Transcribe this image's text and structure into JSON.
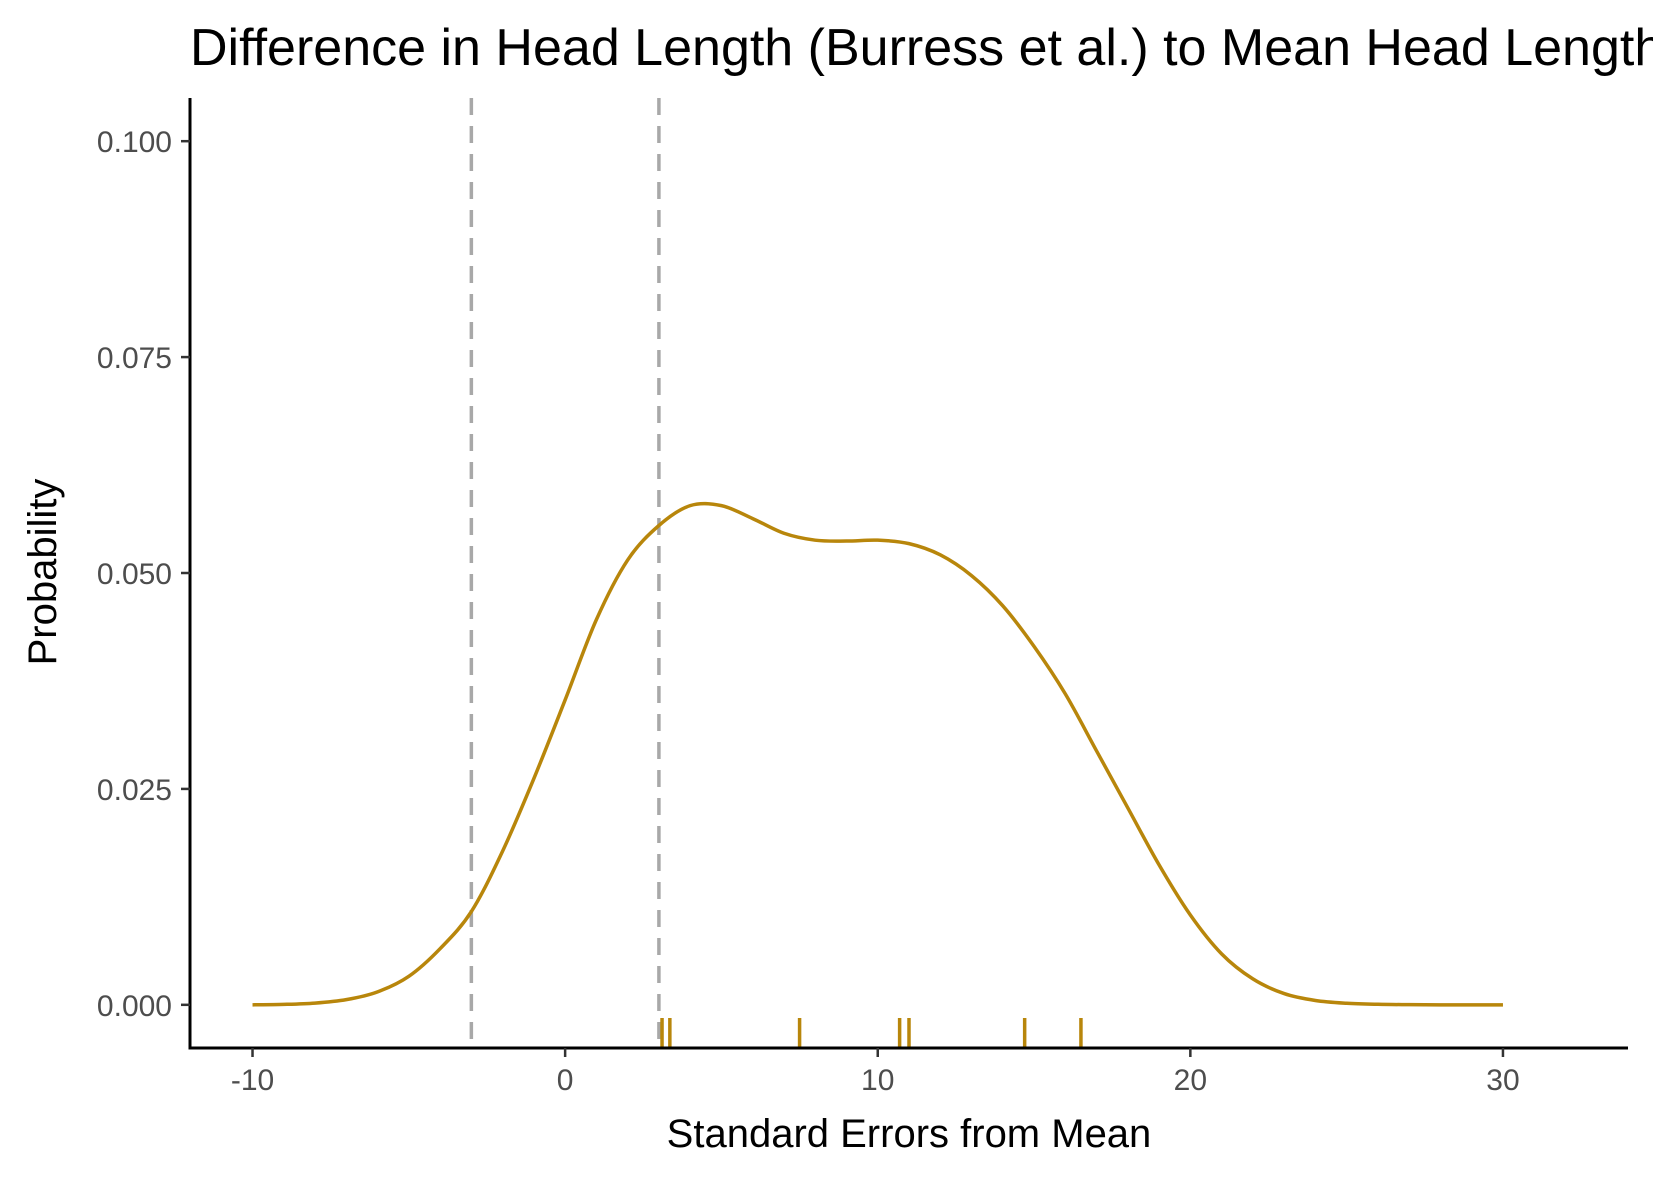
{
  "chart_data": {
    "type": "line",
    "title": "Difference in Head Length (Burress et al.) to Mean Head Length",
    "xlabel": "Standard Errors from Mean",
    "ylabel": "Probability",
    "xlim": [
      -12,
      34
    ],
    "ylim": [
      -0.005,
      0.105
    ],
    "xticks": [
      -10,
      0,
      10,
      20,
      30
    ],
    "xtick_labels": [
      "-10",
      "0",
      "10",
      "20",
      "30"
    ],
    "yticks": [
      0,
      0.025,
      0.05,
      0.075,
      0.1
    ],
    "ytick_labels": [
      "0.000",
      "0.025",
      "0.050",
      "0.075",
      "0.100"
    ],
    "grid": false,
    "legend": "none",
    "line_color": "#B8860B",
    "reference_line_color": "#A8A8A8",
    "reference_lines_x": [
      -3,
      3
    ],
    "rug_x": [
      3.1,
      3.35,
      7.5,
      10.7,
      11.0,
      14.7,
      16.5
    ],
    "series": [
      {
        "x": [
          -10,
          -9,
          -8,
          -7,
          -6,
          -5,
          -4,
          -3,
          -2,
          -1,
          0,
          1,
          2,
          3,
          4,
          5,
          6,
          7,
          8,
          9,
          10,
          11,
          12,
          13,
          14,
          15,
          16,
          17,
          18,
          19,
          20,
          21,
          22,
          23,
          24,
          25,
          26,
          27,
          28,
          29,
          30
        ],
        "y": [
          0.0,
          5e-05,
          0.0002,
          0.0006,
          0.0015,
          0.0033,
          0.0065,
          0.0108,
          0.0178,
          0.0262,
          0.0353,
          0.0446,
          0.0515,
          0.0555,
          0.0578,
          0.0578,
          0.0563,
          0.0546,
          0.0538,
          0.0537,
          0.0538,
          0.0534,
          0.0521,
          0.0497,
          0.0462,
          0.0415,
          0.036,
          0.0294,
          0.0228,
          0.0162,
          0.0104,
          0.0059,
          0.003,
          0.0013,
          0.0005,
          0.00018,
          6e-05,
          2e-05,
          0.0,
          0.0,
          0.0
        ]
      }
    ]
  }
}
